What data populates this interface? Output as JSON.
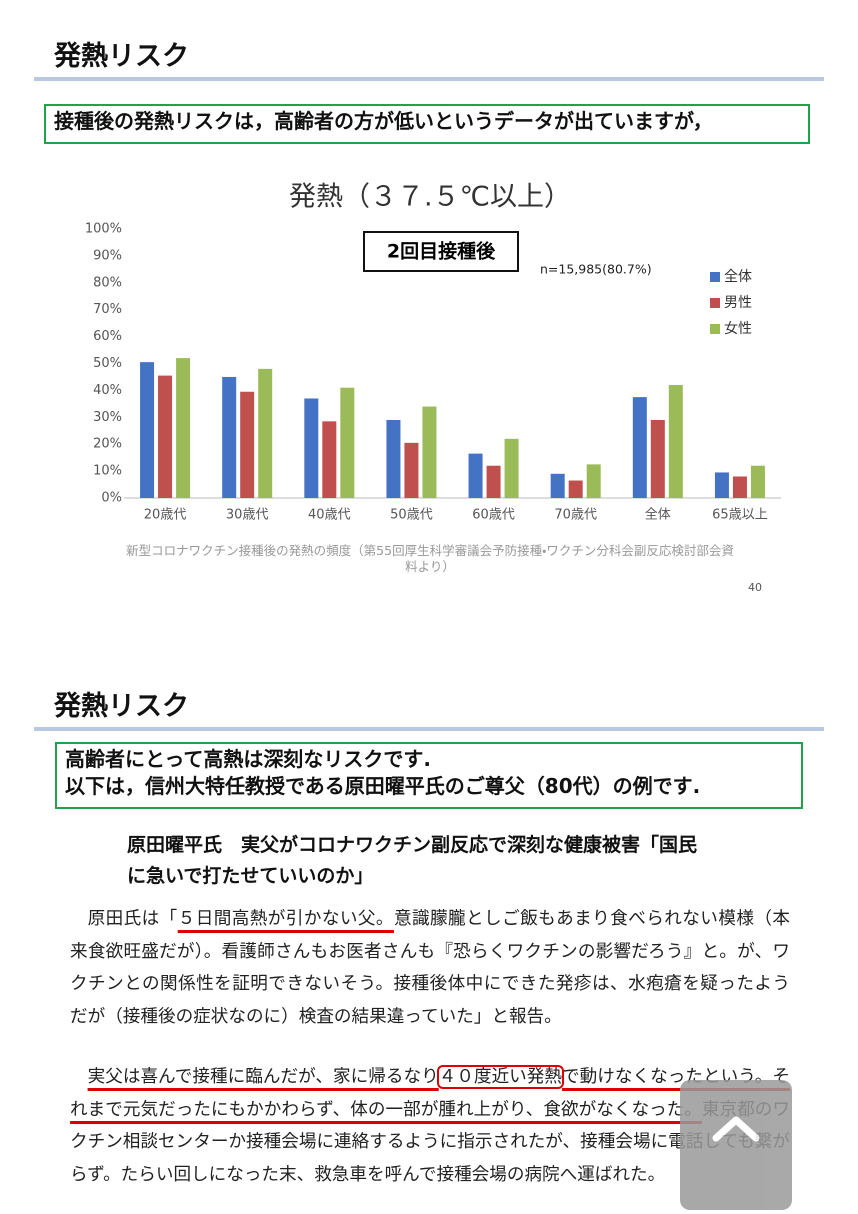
{
  "slide1": {
    "title": "発熱リスク",
    "note": "接種後の発熱リスクは，高齢者の方が低いというデータが出ていますが，",
    "caption": "新型コロナワクチン接種後の発熱の頻度（第55回厚生科学審議会予防接種・ワクチン分科会副反応検討部会資料より）",
    "page_number": "40"
  },
  "chart_data": {
    "type": "bar",
    "title": "発熱（３７.５℃以上）",
    "label_box": "2回目接種後",
    "annotation": "n=15,985(80.7%)",
    "categories": [
      "20歳代",
      "30歳代",
      "40歳代",
      "50歳代",
      "60歳代",
      "70歳代",
      "全体",
      "65歳以上"
    ],
    "series": [
      {
        "name": "全体",
        "color": "#4472c4",
        "values": [
          50.5,
          45,
          37,
          29,
          16.5,
          9,
          37.5,
          9.5
        ]
      },
      {
        "name": "男性",
        "color": "#c0504d",
        "values": [
          45.5,
          39.5,
          28.5,
          20.5,
          12,
          6.5,
          29,
          8
        ]
      },
      {
        "name": "女性",
        "color": "#9bbb59",
        "values": [
          52,
          48,
          41,
          34,
          22,
          12.5,
          42,
          12
        ]
      }
    ],
    "ylim": [
      0,
      100
    ],
    "yticks": [
      {
        "value": 0,
        "label": "0%"
      },
      {
        "value": 10,
        "label": "10%"
      },
      {
        "value": 20,
        "label": "20%"
      },
      {
        "value": 30,
        "label": "30%"
      },
      {
        "value": 40,
        "label": "40%"
      },
      {
        "value": 50,
        "label": "50%"
      },
      {
        "value": 60,
        "label": "60%"
      },
      {
        "value": 70,
        "label": "70%"
      },
      {
        "value": 80,
        "label": "80%"
      },
      {
        "value": 90,
        "label": "90%"
      },
      {
        "value": 100,
        "label": "100%"
      }
    ],
    "grid": false,
    "legend": "right"
  },
  "slide2": {
    "title": "発熱リスク",
    "note_lines": [
      "高齢者にとって高熱は深刻なリスクです.",
      "以下は，信州大特任教授である原田曜平氏のご尊父（80代）の例です."
    ]
  },
  "article": {
    "headline_lines": [
      "原田曜平氏　実父がコロナワクチン副反応で深刻な健康被害「国民",
      "に急いで打たせていいのか」"
    ],
    "paragraphs": [
      {
        "segments": [
          {
            "text": "原田氏は「"
          },
          {
            "text": "５日間高熱が引かない父。",
            "mark": "underline"
          },
          {
            "text": "意識朦朧としご飯もあまり食べられない模様（本来食欲旺盛だが）。看護師さんもお医者さんも『恐らくワクチンの影響だろう』と。が、ワクチンとの関係性を証明できないそう。接種後体中にできた発疹は、水疱瘡を疑ったようだが（接種後の症状なのに）検査の結果違っていた」と報告。"
          }
        ]
      },
      {
        "segments": [
          {
            "text": "実父は喜んで接種に臨んだが、家に帰るなり",
            "mark": "underline"
          },
          {
            "text": "４０度近い発熱",
            "mark": "box"
          },
          {
            "text": "で動けなくなったという。それまで元気だったにもかかわらず、体の一部が腫れ上がり、食欲がなくなった。",
            "mark": "underline"
          },
          {
            "text": "東京都のワクチン相談センターか接種会場に連絡するように指示されたが、接種会場に電話しても繋がらず。たらい回しになった末、救急車を呼んで接種会場の病院へ運ばれた。"
          }
        ]
      }
    ]
  }
}
